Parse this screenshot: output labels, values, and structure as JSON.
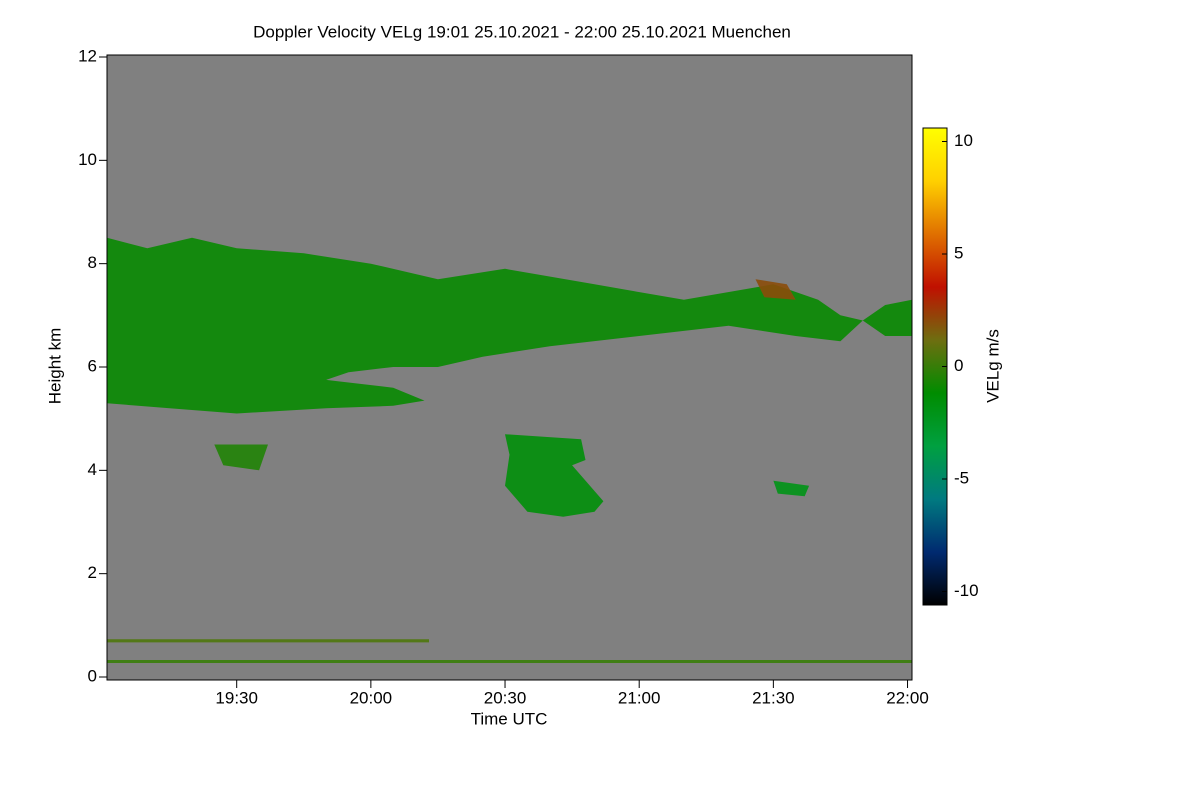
{
  "chart_data": {
    "type": "heatmap",
    "title": "Doppler Velocity VELg   19:01 25.10.2021 - 22:00 25.10.2021 Muenchen",
    "xlabel": "Time UTC",
    "ylabel": "Height km",
    "xlim": [
      "19:01",
      "22:01"
    ],
    "xticks": [
      "19:30",
      "20:00",
      "20:30",
      "21:00",
      "21:30",
      "22:00"
    ],
    "ylim": [
      0,
      12
    ],
    "yticks": [
      0,
      2,
      4,
      6,
      8,
      10,
      12
    ],
    "background": "#808080",
    "colorbar": {
      "label": "VELg m/s",
      "lim": [
        -10.6,
        10.6
      ],
      "ticks": [
        -10,
        -5,
        0,
        5,
        10
      ],
      "colors": [
        "#000000",
        "#002a70",
        "#007a80",
        "#00a040",
        "#008c00",
        "#6e6e10",
        "#c01000",
        "#e07000",
        "#ffd000",
        "#ffff00"
      ]
    },
    "regions": [
      {
        "value": -1,
        "x": [
          "19:01",
          "19:10",
          "19:20",
          "19:30",
          "19:45",
          "20:00",
          "20:15",
          "20:30",
          "20:50",
          "21:10",
          "21:30",
          "21:40",
          "21:45",
          "21:50",
          "21:55",
          "22:01",
          "22:01",
          "21:55",
          "21:50",
          "21:45",
          "21:35",
          "21:20",
          "21:00",
          "20:40",
          "20:25",
          "20:15",
          "20:05",
          "19:55",
          "19:50",
          "20:05",
          "20:12",
          "20:05",
          "19:50",
          "19:30",
          "19:15",
          "19:01"
        ],
        "y": [
          8.5,
          8.3,
          8.5,
          8.3,
          8.2,
          8.0,
          7.7,
          7.9,
          7.6,
          7.3,
          7.6,
          7.3,
          7.0,
          6.9,
          7.2,
          7.3,
          6.6,
          6.6,
          6.9,
          6.5,
          6.6,
          6.8,
          6.6,
          6.4,
          6.2,
          6.0,
          6.0,
          5.9,
          5.75,
          5.6,
          5.35,
          5.25,
          5.2,
          5.1,
          5.2,
          5.3
        ]
      },
      {
        "value": 2,
        "x": [
          "21:26",
          "21:33",
          "21:35",
          "21:28"
        ],
        "y": [
          7.7,
          7.6,
          7.3,
          7.35
        ]
      },
      {
        "value": -1.5,
        "x": [
          "20:30",
          "20:47",
          "20:48",
          "20:45",
          "20:52",
          "20:50",
          "20:43",
          "20:35",
          "20:30",
          "20:31"
        ],
        "y": [
          4.7,
          4.6,
          4.2,
          4.1,
          3.4,
          3.2,
          3.1,
          3.2,
          3.7,
          4.3
        ]
      },
      {
        "value": -0.5,
        "x": [
          "19:25",
          "19:37",
          "19:35",
          "19:27"
        ],
        "y": [
          4.5,
          4.5,
          4.0,
          4.1
        ]
      },
      {
        "value": -2,
        "x": [
          "21:30",
          "21:38",
          "21:37",
          "21:31"
        ],
        "y": [
          3.8,
          3.7,
          3.5,
          3.55
        ]
      },
      {
        "value": 0,
        "x": [
          "19:01",
          "22:01",
          "22:01",
          "19:01"
        ],
        "y": [
          0.33,
          0.33,
          0.27,
          0.27
        ]
      },
      {
        "value": 0.5,
        "x": [
          "19:01",
          "20:13",
          "20:13",
          "19:01"
        ],
        "y": [
          0.73,
          0.73,
          0.67,
          0.67
        ]
      }
    ]
  }
}
